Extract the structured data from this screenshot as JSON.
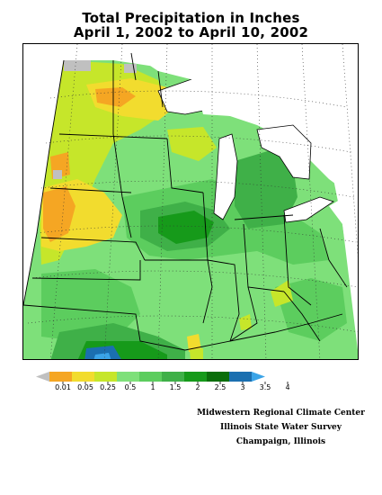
{
  "title": {
    "line1": "Total Precipitation in Inches",
    "line2": "April 1, 2002 to April 10, 2002"
  },
  "legend": {
    "ticks": [
      "0.01",
      "0.05",
      "0.25",
      "0.5",
      "1",
      "1.5",
      "2",
      "2.5",
      "3",
      "3.5",
      "4"
    ],
    "colors": [
      "#c0c0c0",
      "#f5a623",
      "#f2dc2e",
      "#c6e62a",
      "#7ee07a",
      "#5ccd5e",
      "#3fb048",
      "#169a1a",
      "#0a6e0a",
      "#1b6fb0",
      "#3aa4e8"
    ]
  },
  "credits": {
    "line1": "Midwestern Regional Climate Center",
    "line2": "Illinois State Water Survey",
    "line3": "Champaign, Illinois"
  },
  "map": {
    "region": "Midwest United States",
    "colors": {
      "gray": "#c0c0c0",
      "orange": "#f5a623",
      "yellow": "#f2dc2e",
      "lime": "#c6e62a",
      "light_green": "#7ee07a",
      "green": "#5ccd5e",
      "mid_green": "#3fb048",
      "dark_green": "#169a1a",
      "blue": "#1b6fb0",
      "light_blue": "#3aa4e8"
    }
  }
}
